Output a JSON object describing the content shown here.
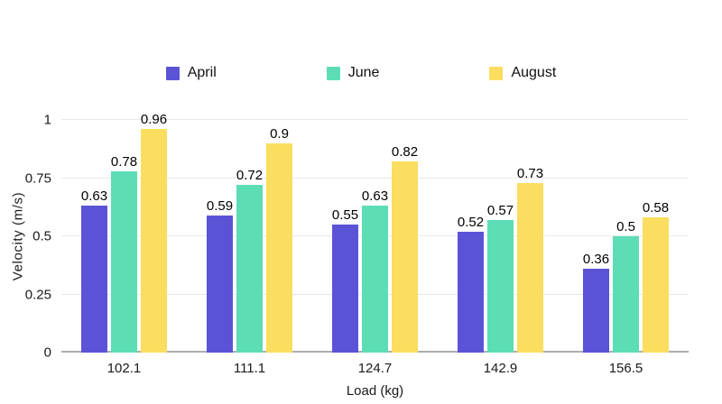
{
  "chart_data": {
    "type": "bar",
    "title": "",
    "categories": [
      "102.1",
      "111.1",
      "124.7",
      "142.9",
      "156.5"
    ],
    "series": [
      {
        "name": "April",
        "color": "#5b53d6",
        "values": [
          0.63,
          0.59,
          0.55,
          0.52,
          0.36
        ]
      },
      {
        "name": "June",
        "color": "#5cddb5",
        "values": [
          0.78,
          0.72,
          0.63,
          0.57,
          0.5
        ]
      },
      {
        "name": "August",
        "color": "#fbdd60",
        "values": [
          0.96,
          0.9,
          0.82,
          0.73,
          0.58
        ]
      }
    ],
    "xlabel": "Load (kg)",
    "ylabel": "Velocity (m/s)",
    "ylim": [
      0,
      1
    ],
    "yticks": [
      "0",
      "0.25",
      "0.5",
      "0.75",
      "1"
    ],
    "grid": true,
    "legend_position": "top",
    "value_labels": true
  },
  "colors": {
    "background": "#ffffff",
    "gridline": "#e8e8e8",
    "axis_line": "#aeaeae",
    "text": "#1a1a1a"
  }
}
